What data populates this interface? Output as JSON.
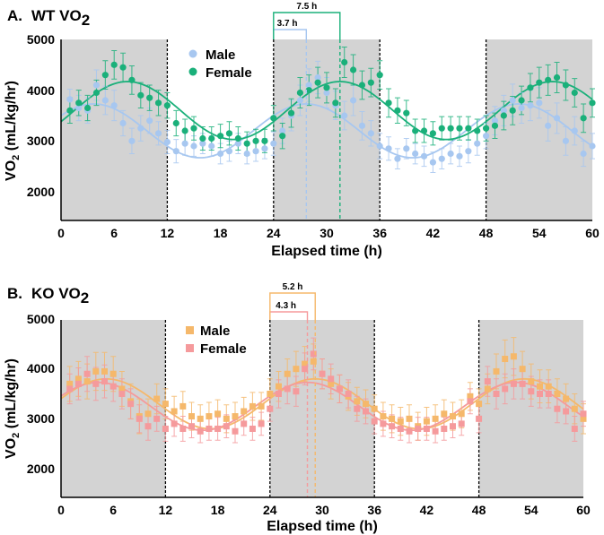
{
  "chart_data": [
    {
      "type": "scatter",
      "panel_letter": "A.",
      "title_main": "WT VO",
      "title_sub": "2",
      "xlabel": "Elapsed time  (h)",
      "ylabel_main": "VO",
      "ylabel_sub": "2",
      "ylabel_rest": " (mL/kg/hr)",
      "xlim": [
        0,
        60
      ],
      "ylim": [
        1600,
        5000
      ],
      "xticks": [
        "0",
        "6",
        "12",
        "18",
        "24",
        "30",
        "36",
        "42",
        "48",
        "54",
        "60"
      ],
      "yticks": [
        "2000",
        "3000",
        "4000",
        "5000"
      ],
      "dark_periods": [
        [
          0,
          12
        ],
        [
          24,
          36
        ],
        [
          48,
          60
        ]
      ],
      "period_dividers": [
        12,
        24,
        36,
        48
      ],
      "marker": "circle",
      "series": [
        {
          "name": "Male",
          "color": "#a7c7f0",
          "fit": {
            "mesor": 3200,
            "amplitude": 530,
            "peak": 27.7,
            "period": 24
          },
          "x": [
            1,
            2,
            3,
            4,
            5,
            6,
            7,
            8,
            9,
            10,
            11,
            12,
            13,
            14,
            15,
            16,
            17,
            18,
            19,
            20,
            21,
            22,
            23,
            24,
            25,
            26,
            27,
            28,
            29,
            30,
            31,
            32,
            33,
            34,
            35,
            36,
            37,
            38,
            39,
            40,
            41,
            42,
            43,
            44,
            45,
            46,
            47,
            48,
            49,
            50,
            51,
            52,
            53,
            54,
            55,
            56,
            57,
            58,
            59,
            60
          ],
          "y": [
            3820,
            3650,
            3600,
            4100,
            3800,
            3700,
            3350,
            3000,
            3250,
            3400,
            3150,
            2980,
            2800,
            2950,
            2900,
            2950,
            2900,
            2750,
            2800,
            2950,
            2750,
            2800,
            2850,
            2950,
            3200,
            3500,
            3800,
            4100,
            4250,
            3950,
            3700,
            3500,
            3800,
            3300,
            3150,
            2900,
            2850,
            2650,
            2850,
            2750,
            2700,
            2580,
            2650,
            2750,
            2700,
            2800,
            2950,
            3100,
            3400,
            3600,
            3800,
            3650,
            3700,
            3750,
            3300,
            3450,
            3000,
            3200,
            2750,
            2900
          ],
          "err": [
            200,
            250,
            250,
            300,
            280,
            300,
            250,
            250,
            250,
            250,
            230,
            230,
            230,
            230,
            200,
            200,
            200,
            200,
            200,
            200,
            200,
            200,
            200,
            230,
            250,
            300,
            300,
            320,
            320,
            300,
            280,
            280,
            300,
            280,
            250,
            250,
            230,
            200,
            200,
            200,
            200,
            200,
            200,
            200,
            200,
            230,
            230,
            250,
            280,
            300,
            320,
            300,
            300,
            300,
            300,
            300,
            280,
            280,
            250,
            250
          ]
        },
        {
          "name": "Female",
          "color": "#1ab07a",
          "fit": {
            "mesor": 3600,
            "amplitude": 570,
            "peak": 31.5,
            "period": 24
          },
          "x": [
            1,
            2,
            3,
            4,
            5,
            6,
            7,
            8,
            9,
            10,
            11,
            12,
            13,
            14,
            15,
            16,
            17,
            18,
            19,
            20,
            21,
            22,
            23,
            24,
            25,
            26,
            27,
            28,
            29,
            30,
            31,
            32,
            33,
            34,
            35,
            36,
            37,
            38,
            39,
            40,
            41,
            42,
            43,
            44,
            45,
            46,
            47,
            48,
            49,
            50,
            51,
            52,
            53,
            54,
            55,
            56,
            57,
            58,
            59,
            60
          ],
          "y": [
            3600,
            3750,
            3650,
            3950,
            4300,
            4500,
            4450,
            4200,
            3900,
            3850,
            3750,
            3700,
            3350,
            3200,
            3250,
            3050,
            3050,
            3100,
            3150,
            3050,
            2950,
            3000,
            3000,
            3450,
            3100,
            3550,
            3950,
            4000,
            4150,
            4050,
            3750,
            4550,
            4400,
            4100,
            4150,
            4300,
            3750,
            3600,
            3550,
            3200,
            3200,
            3150,
            3250,
            3250,
            3250,
            3250,
            3200,
            3250,
            3300,
            3500,
            3600,
            3800,
            4050,
            4150,
            4200,
            4250,
            4100,
            3950,
            3450,
            3750
          ],
          "err": [
            250,
            250,
            250,
            250,
            280,
            280,
            280,
            280,
            250,
            250,
            250,
            250,
            250,
            230,
            230,
            230,
            230,
            230,
            230,
            230,
            230,
            230,
            230,
            250,
            250,
            280,
            300,
            300,
            300,
            300,
            280,
            300,
            300,
            280,
            280,
            280,
            280,
            250,
            250,
            230,
            230,
            230,
            230,
            230,
            230,
            230,
            230,
            250,
            250,
            280,
            280,
            280,
            280,
            300,
            300,
            300,
            300,
            280,
            280,
            280
          ]
        }
      ],
      "annotations": [
        {
          "label": "3.7 h",
          "series": "Male",
          "peak": 27.7
        },
        {
          "label": "7.5 h",
          "series": "Female",
          "peak": 31.5
        }
      ]
    },
    {
      "type": "scatter",
      "panel_letter": "B.",
      "title_main": "KO VO",
      "title_sub": "2",
      "xlabel": "Elapsed time  (h)",
      "ylabel_main": "VO",
      "ylabel_sub": "2",
      "ylabel_rest": " (mL/kg/hr)",
      "xlim": [
        0,
        60
      ],
      "ylim": [
        1600,
        5000
      ],
      "xticks": [
        "0",
        "6",
        "12",
        "18",
        "24",
        "30",
        "36",
        "42",
        "48",
        "54",
        "60"
      ],
      "yticks": [
        "2000",
        "3000",
        "4000",
        "5000"
      ],
      "dark_periods": [
        [
          0,
          12
        ],
        [
          24,
          36
        ],
        [
          48,
          60
        ]
      ],
      "period_dividers": [
        12,
        24,
        36,
        48
      ],
      "marker": "square",
      "series": [
        {
          "name": "Male",
          "color": "#f5b86b",
          "fit": {
            "mesor": 3300,
            "amplitude": 500,
            "peak": 29.2,
            "period": 24
          },
          "x": [
            1,
            2,
            3,
            4,
            5,
            6,
            7,
            8,
            9,
            10,
            11,
            12,
            13,
            14,
            15,
            16,
            17,
            18,
            19,
            20,
            21,
            22,
            23,
            24,
            25,
            26,
            27,
            28,
            29,
            30,
            31,
            32,
            33,
            34,
            35,
            36,
            37,
            38,
            39,
            40,
            41,
            42,
            43,
            44,
            45,
            46,
            47,
            48,
            49,
            50,
            51,
            52,
            53,
            54,
            55,
            56,
            57,
            58,
            59,
            60
          ],
          "y": [
            3700,
            3800,
            3750,
            3950,
            3950,
            3900,
            3600,
            3350,
            3050,
            3100,
            3400,
            3300,
            3150,
            3250,
            3050,
            3000,
            3050,
            3100,
            3000,
            3050,
            3150,
            3250,
            3250,
            3500,
            3650,
            3900,
            4000,
            4100,
            4150,
            3900,
            3700,
            3600,
            3450,
            3350,
            3300,
            3200,
            3050,
            3000,
            2950,
            3000,
            2850,
            2950,
            3000,
            3100,
            3050,
            3100,
            3450,
            3300,
            3600,
            3950,
            4200,
            4250,
            4000,
            3750,
            3650,
            3650,
            3500,
            3400,
            3200,
            3000
          ],
          "err": [
            350,
            350,
            350,
            380,
            380,
            350,
            350,
            350,
            350,
            300,
            300,
            300,
            300,
            300,
            280,
            280,
            280,
            280,
            280,
            280,
            280,
            280,
            280,
            300,
            300,
            300,
            350,
            350,
            350,
            300,
            300,
            280,
            280,
            280,
            280,
            280,
            280,
            280,
            280,
            280,
            280,
            280,
            280,
            280,
            280,
            280,
            280,
            300,
            300,
            350,
            380,
            380,
            350,
            350,
            330,
            330,
            300,
            300,
            300,
            300
          ]
        },
        {
          "name": "Female",
          "color": "#f59a9c",
          "fit": {
            "mesor": 3250,
            "amplitude": 480,
            "peak": 28.3,
            "period": 24
          },
          "x": [
            1,
            2,
            3,
            4,
            5,
            6,
            7,
            8,
            9,
            10,
            11,
            12,
            13,
            14,
            15,
            16,
            17,
            18,
            19,
            20,
            21,
            22,
            23,
            24,
            25,
            26,
            27,
            28,
            29,
            30,
            31,
            32,
            33,
            34,
            35,
            36,
            37,
            38,
            39,
            40,
            41,
            42,
            43,
            44,
            45,
            46,
            47,
            48,
            49,
            50,
            51,
            52,
            53,
            54,
            55,
            56,
            57,
            58,
            59,
            60
          ],
          "y": [
            3600,
            3700,
            3900,
            3700,
            3750,
            3650,
            3500,
            3300,
            3000,
            2850,
            3000,
            2800,
            2900,
            2800,
            2850,
            2750,
            2800,
            2800,
            2850,
            2750,
            2900,
            2800,
            2900,
            3200,
            3500,
            3600,
            3550,
            4000,
            4300,
            3900,
            3800,
            3600,
            3500,
            3200,
            3150,
            2950,
            2900,
            2850,
            2800,
            2750,
            2800,
            2800,
            2750,
            2800,
            2850,
            2900,
            3350,
            3000,
            3750,
            3500,
            3600,
            3700,
            3700,
            3550,
            3500,
            3500,
            3200,
            3150,
            2800,
            3100
          ],
          "err": [
            300,
            320,
            350,
            330,
            330,
            300,
            300,
            300,
            280,
            280,
            250,
            250,
            250,
            250,
            230,
            230,
            230,
            230,
            230,
            230,
            230,
            230,
            230,
            250,
            280,
            300,
            300,
            320,
            320,
            300,
            300,
            280,
            280,
            250,
            250,
            250,
            250,
            230,
            230,
            230,
            230,
            230,
            230,
            230,
            230,
            230,
            250,
            280,
            300,
            300,
            300,
            300,
            300,
            300,
            280,
            280,
            280,
            250,
            250,
            250
          ]
        }
      ],
      "annotations": [
        {
          "label": "4.3 h",
          "series": "Female",
          "peak": 28.3
        },
        {
          "label": "5.2 h",
          "series": "Male",
          "peak": 29.2
        }
      ]
    }
  ]
}
